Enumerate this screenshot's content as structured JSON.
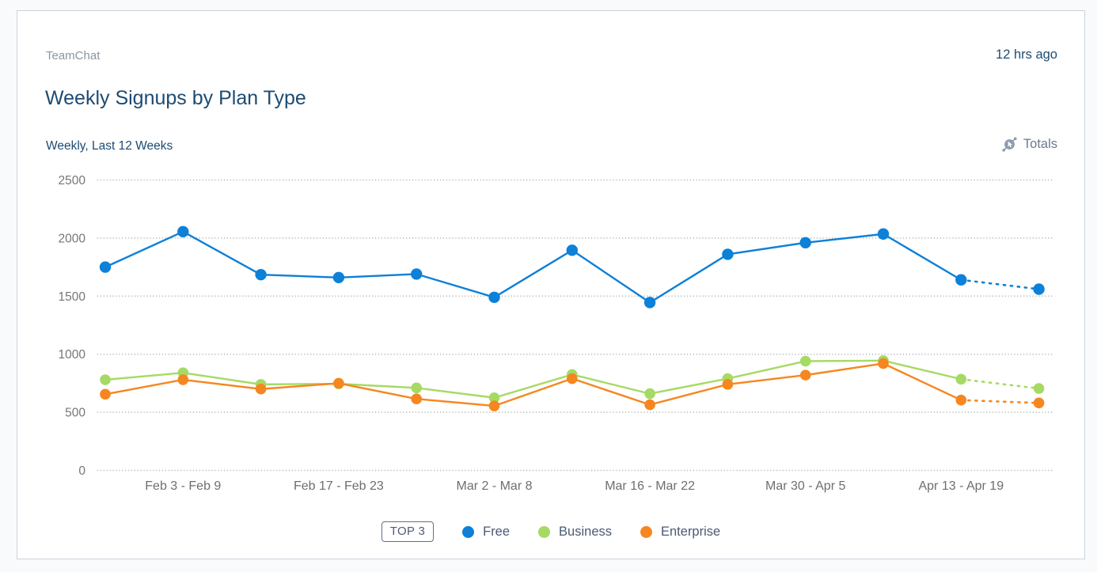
{
  "card": {
    "source_label": "TeamChat",
    "updated_label": "12 hrs ago",
    "title": "Weekly Signups by Plan Type",
    "range_label": "Weekly, Last 12 Weeks",
    "metric_label": "Totals"
  },
  "legend": {
    "top_badge": "TOP 3",
    "items": [
      {
        "label": "Free",
        "color": "#0d80d8"
      },
      {
        "label": "Business",
        "color": "#a6da64"
      },
      {
        "label": "Enterprise",
        "color": "#f6861f"
      }
    ]
  },
  "colors": {
    "accent_navy": "#1d4b72",
    "free_blue": "#0d80d8",
    "business_green": "#a6da64",
    "enterprise_orange": "#f6861f",
    "grid_gray": "#b5b5b5",
    "tick_gray": "#767676",
    "totals_icon_gray": "#8d9cb0",
    "card_border": "#ccd3da"
  },
  "chart_data": {
    "type": "line",
    "title": "Weekly Signups by Plan Type",
    "subtitle": "Weekly, Last 12 Weeks",
    "metric": "Totals",
    "grid": "dotted-horizontal",
    "legend_position": "bottom",
    "ylim": [
      0,
      2500
    ],
    "y_ticks": [
      0,
      500,
      1000,
      1500,
      2000,
      2500
    ],
    "x_tick_labels": [
      "Feb 3 - Feb 9",
      "Feb 17 - Feb 23",
      "Mar 2 - Mar 8",
      "Mar 16 - Mar 22",
      "Mar 30 - Apr 5",
      "Apr 13 - Apr 19"
    ],
    "x_tick_point_indexes": [
      1,
      3,
      5,
      7,
      9,
      11
    ],
    "num_points": 13,
    "last_segment_dotted": true,
    "series": [
      {
        "name": "Free",
        "color": "#0d80d8",
        "values": [
          1750,
          2055,
          1685,
          1660,
          1690,
          1490,
          1895,
          1445,
          1860,
          1960,
          2035,
          1640,
          1560
        ]
      },
      {
        "name": "Business",
        "color": "#a6da64",
        "values": [
          780,
          840,
          740,
          745,
          710,
          625,
          825,
          660,
          790,
          940,
          945,
          785,
          705
        ]
      },
      {
        "name": "Enterprise",
        "color": "#f6861f",
        "values": [
          655,
          780,
          700,
          750,
          615,
          555,
          790,
          565,
          740,
          820,
          920,
          605,
          580
        ]
      }
    ]
  }
}
